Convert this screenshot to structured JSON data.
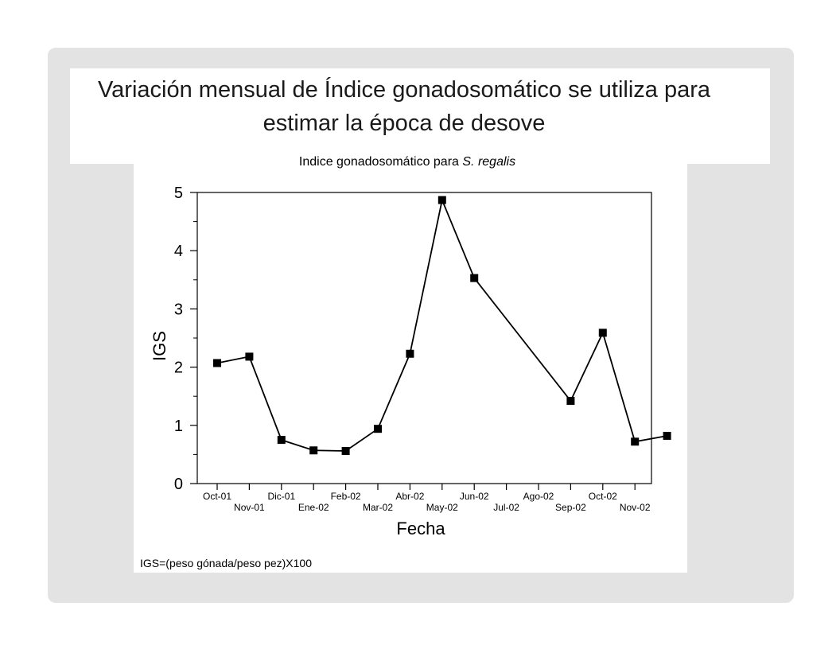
{
  "slide": {
    "title": "Variación mensual de Índice gonadosomático se utiliza para estimar la época de desove",
    "footnote": "IGS=(peso gónada/peso pez)X100"
  },
  "chart_data": {
    "type": "line",
    "title_prefix": "Indice gonadosomático para ",
    "title_species": "S. regalis",
    "xlabel": "Fecha",
    "ylabel": "IGS",
    "ylim": [
      0,
      5
    ],
    "yticks": [
      0,
      1,
      2,
      3,
      4,
      5
    ],
    "categories": [
      "Oct-01",
      "Nov-01",
      "Dic-01",
      "Ene-02",
      "Feb-02",
      "Mar-02",
      "Abr-02",
      "May-02",
      "Jun-02",
      "Jul-02",
      "Ago-02",
      "Sep-02",
      "Oct-02",
      "Nov-02"
    ],
    "series": [
      {
        "values": [
          2.07,
          2.18,
          0.75,
          0.57,
          0.56,
          0.94,
          2.23,
          4.87,
          3.53,
          null,
          1.42,
          2.59,
          0.72,
          0.82
        ]
      }
    ],
    "x_positions": [
      0,
      1,
      2,
      3,
      4,
      5,
      6,
      7,
      8,
      10,
      11,
      12,
      13,
      14
    ],
    "grid": false,
    "line_color": "#000000",
    "marker": "square"
  }
}
